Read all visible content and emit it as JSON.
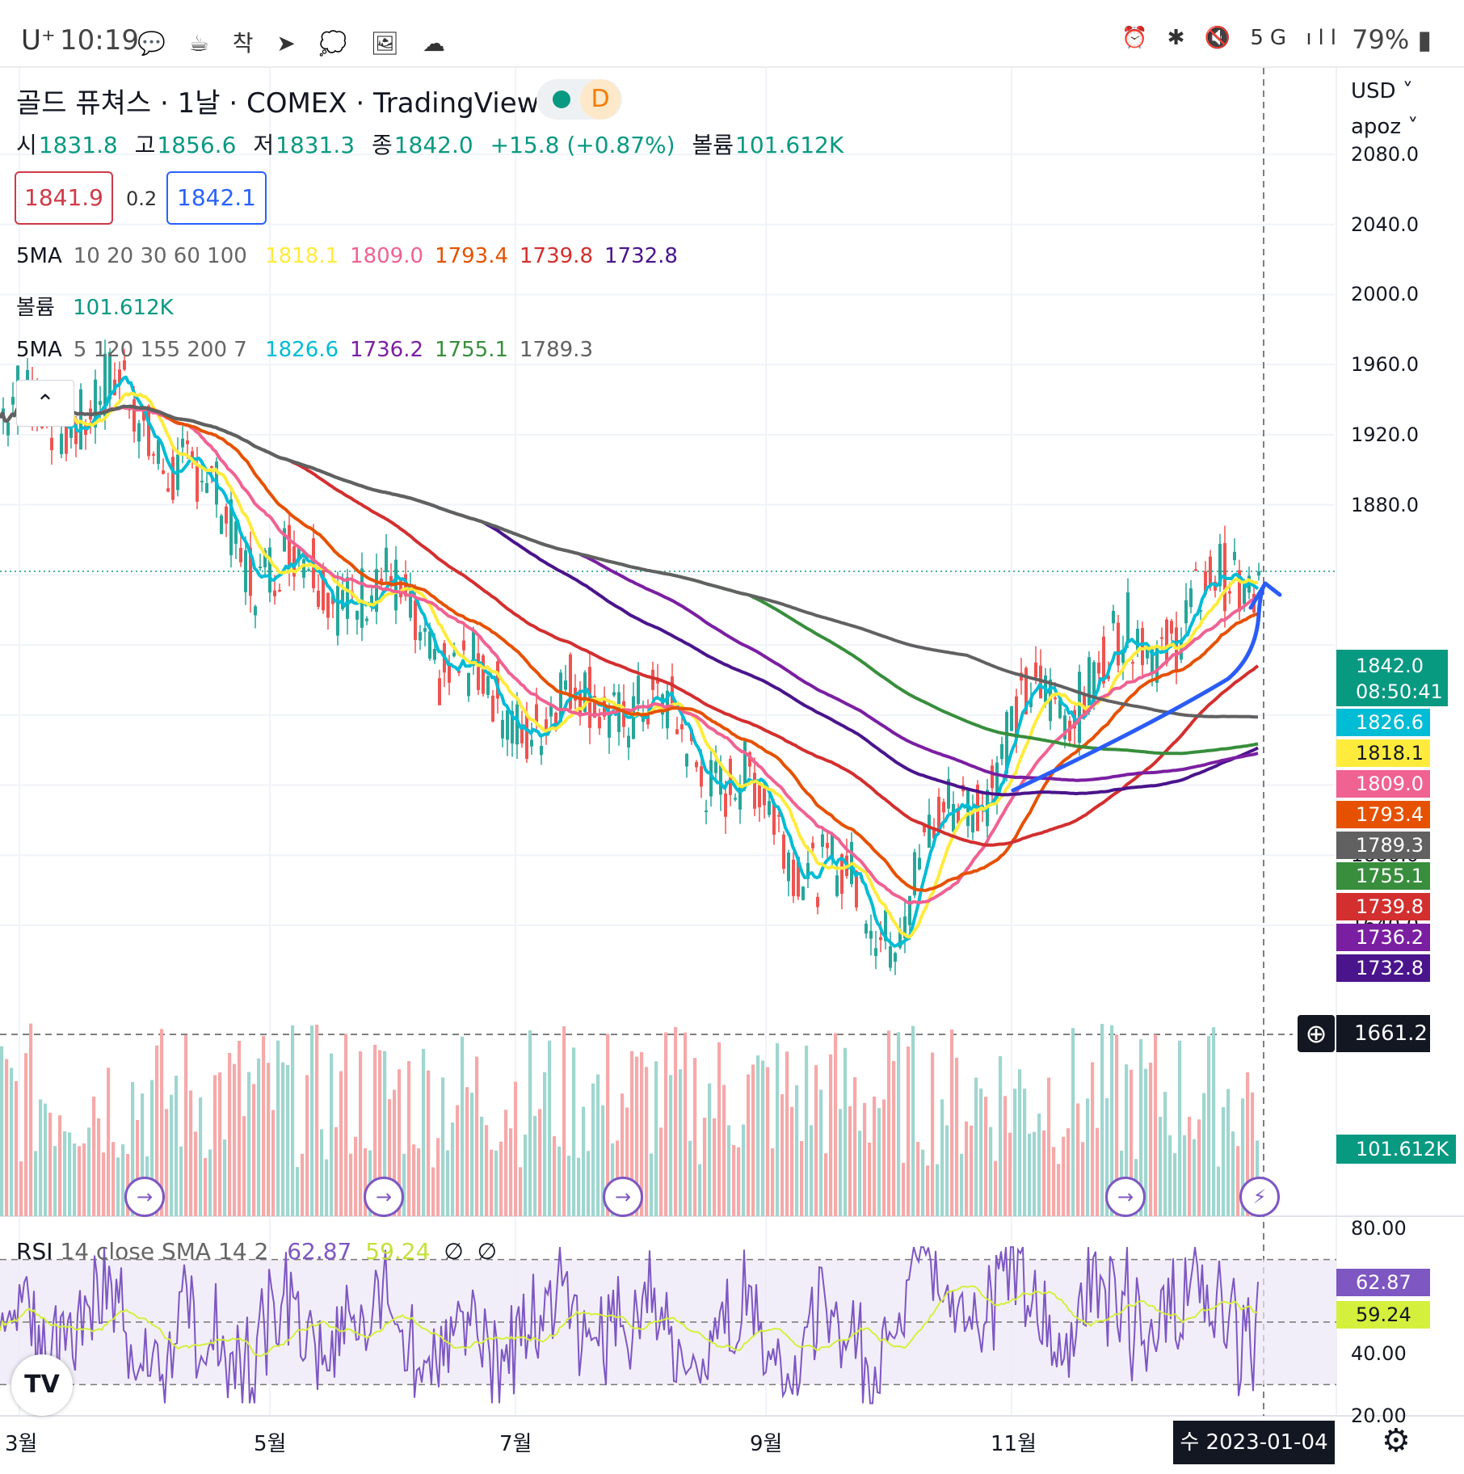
{
  "status_bar": {
    "carrier": "U⁺",
    "time": "10:19",
    "battery": "79%",
    "left_icons": "💬 ☕ 착 ➤ 💭 🖼 ☁",
    "right_icons": "⏰ ✱ 🔇 5G ıll"
  },
  "header": {
    "title": "골드 퓨쳐스 · 1날 · COMEX · TradingView",
    "status_letter": "D",
    "ohlc": [
      {
        "label": "시",
        "value": "1831.8"
      },
      {
        "label": "고",
        "value": "1856.6"
      },
      {
        "label": "저",
        "value": "1831.3"
      },
      {
        "label": "종",
        "value": "1842.0"
      },
      {
        "label": "",
        "value": "+15.8 (+0.87%)"
      },
      {
        "label": "볼륨",
        "value": "101.612K"
      }
    ],
    "bid": "1841.9",
    "spread": "0.2",
    "ask": "1842.1"
  },
  "legends": {
    "ma1": {
      "name": "5MA",
      "params": "10 20 30 60 100",
      "values": [
        {
          "v": "1818.1",
          "color": "#ffeb3b"
        },
        {
          "v": "1809.0",
          "color": "#f06292"
        },
        {
          "v": "1793.4",
          "color": "#e65100"
        },
        {
          "v": "1739.8",
          "color": "#d32f2f"
        },
        {
          "v": "1732.8",
          "color": "#4a148c"
        }
      ]
    },
    "volume": {
      "name": "볼륨",
      "value": "101.612K"
    },
    "ma2": {
      "name": "5MA",
      "params": "5 120 155 200 7",
      "values": [
        {
          "v": "1826.6",
          "color": "#00bcd4"
        },
        {
          "v": "1736.2",
          "color": "#7b1fa2"
        },
        {
          "v": "1755.1",
          "color": "#388e3c"
        },
        {
          "v": "1789.3",
          "color": "#616161"
        }
      ]
    },
    "rsi": {
      "name": "RSI",
      "params": "14 close SMA 14 2",
      "rsi": "62.87",
      "sma": "59.24",
      "na1": "∅",
      "na2": "∅"
    }
  },
  "right_axis": {
    "currency": "USD ˅",
    "user": "apoz ˅",
    "price_labels": [
      "2080.0",
      "2040.0",
      "2000.0",
      "1960.0",
      "1920.0",
      "1880.0",
      "1680.0",
      "1640.0"
    ],
    "last_price": "1842.0",
    "countdown": "08:50:41",
    "crosshair_price": "1661.2",
    "volume_tag": "101.612K",
    "rsi_labels": [
      "80.00",
      "40.00",
      "20.00"
    ],
    "tags": [
      {
        "v": "1826.6",
        "color": "#00bcd4"
      },
      {
        "v": "1818.1",
        "color": "#ffeb3b",
        "dark": true
      },
      {
        "v": "1809.0",
        "color": "#f06292"
      },
      {
        "v": "1793.4",
        "color": "#e65100"
      },
      {
        "v": "1789.3",
        "color": "#616161"
      },
      {
        "v": "1755.1",
        "color": "#388e3c"
      },
      {
        "v": "1739.8",
        "color": "#d32f2f"
      },
      {
        "v": "1736.2",
        "color": "#7b1fa2"
      },
      {
        "v": "1732.8",
        "color": "#4a148c"
      }
    ],
    "rsi_tags": [
      {
        "v": "62.87",
        "color": "#7e57c2"
      },
      {
        "v": "59.24",
        "color": "#d4f03c",
        "dark": true
      }
    ]
  },
  "x_axis": {
    "labels": [
      "3월",
      "5월",
      "7월",
      "9월",
      "11월"
    ],
    "crosshair_date": "수 2023-01-04"
  },
  "chart_data": {
    "type": "candlestick",
    "symbol": "골드 퓨쳐스",
    "ylim": [
      1620,
      2100
    ],
    "last_close": 1842.0,
    "ma_last_values": {
      "MA5": 1826.6,
      "MA10": 1818.1,
      "MA20": 1809.0,
      "MA30": 1793.4,
      "MA60": 1739.8,
      "MA100": 1732.8,
      "MA120": 1736.2,
      "MA155": 1755.1,
      "MA200": 1789.3
    },
    "close_series_approx": [
      {
        "x": "3월",
        "y": 1930
      },
      {
        "x": "4월",
        "y": 1940
      },
      {
        "x": "5월",
        "y": 1850
      },
      {
        "x": "6월",
        "y": 1830
      },
      {
        "x": "7월",
        "y": 1760
      },
      {
        "x": "8월",
        "y": 1770
      },
      {
        "x": "9월",
        "y": 1710
      },
      {
        "x": "10월",
        "y": 1640
      },
      {
        "x": "11월",
        "y": 1750
      },
      {
        "x": "12월",
        "y": 1800
      },
      {
        "x": "2023-01-04",
        "y": 1842
      }
    ],
    "rsi": {
      "last": 62.87,
      "sma_last": 59.24,
      "ylim": [
        20,
        80
      ]
    },
    "volume_last": "101.612K"
  }
}
